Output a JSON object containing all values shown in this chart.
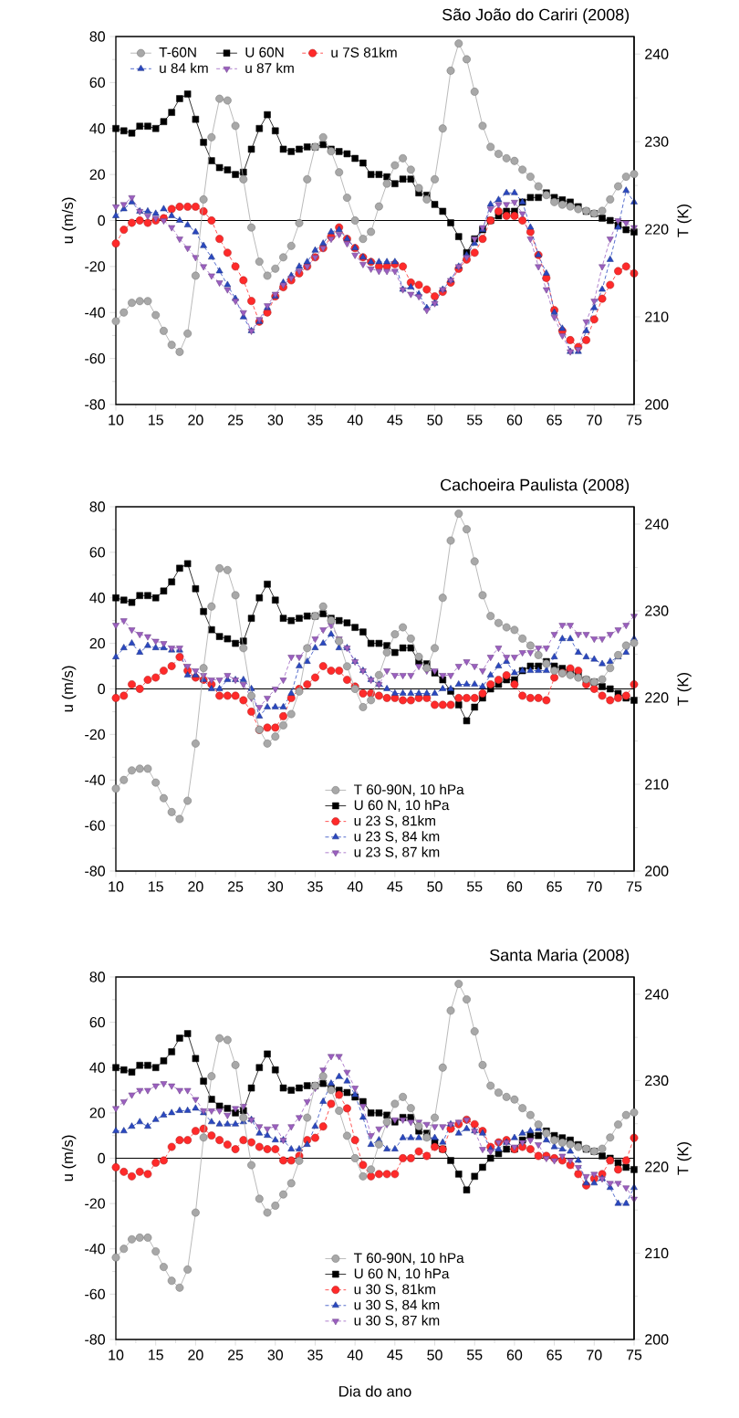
{
  "chart_data": [
    {
      "type": "line",
      "title": "São João do Cariri (2008)",
      "ylabel": "u (m/s)",
      "y2label": "T (K)",
      "x": [
        10,
        11,
        12,
        13,
        14,
        15,
        16,
        17,
        18,
        19,
        20,
        21,
        22,
        23,
        24,
        25,
        26,
        27,
        28,
        29,
        30,
        31,
        32,
        33,
        34,
        35,
        36,
        37,
        38,
        39,
        40,
        41,
        42,
        43,
        44,
        45,
        46,
        47,
        48,
        49,
        50,
        51,
        52,
        53,
        54,
        55,
        56,
        57,
        58,
        59,
        60,
        61,
        62,
        63,
        64,
        65,
        66,
        67,
        68,
        69,
        70,
        71,
        72,
        73,
        74,
        75
      ],
      "xlim": [
        10,
        75
      ],
      "xticks": [
        10,
        15,
        20,
        25,
        30,
        35,
        40,
        45,
        50,
        55,
        60,
        65,
        70,
        75
      ],
      "ylim": [
        -80,
        80
      ],
      "yticks": [
        -80,
        -60,
        -40,
        -20,
        0,
        20,
        40,
        60,
        80
      ],
      "y2lim": [
        200,
        242
      ],
      "y2ticks": [
        200,
        210,
        220,
        230,
        240
      ],
      "legend": "top",
      "ref_lines": [
        {
          "axis": "y",
          "value": 0,
          "color": "#000000"
        }
      ],
      "series": [
        {
          "name": "T-60N",
          "axis": "y2",
          "color": "#a8a8a8",
          "marker": "circle",
          "line_style": "solid",
          "values": [
            209.5,
            210.5,
            211.6,
            211.8,
            211.8,
            210.2,
            208.4,
            206.8,
            206.0,
            208.1,
            214.7,
            223.4,
            230.5,
            234.9,
            234.7,
            231.8,
            225.7,
            220.2,
            216.3,
            214.7,
            215.5,
            216.8,
            218.1,
            220.7,
            225.7,
            229.4,
            230.5,
            228.9,
            226.5,
            223.6,
            221.0,
            218.9,
            219.7,
            222.6,
            225.2,
            227.3,
            228.1,
            226.8,
            224.7,
            223.4,
            225.7,
            231.5,
            238.1,
            241.2,
            239.4,
            235.7,
            231.8,
            229.4,
            228.6,
            228.1,
            227.8,
            226.8,
            226.0,
            224.9,
            223.9,
            223.1,
            222.8,
            222.6,
            222.3,
            222.1,
            221.8,
            222.1,
            223.4,
            224.9,
            226.0,
            226.3
          ]
        },
        {
          "name": "U 60N",
          "color": "#000000",
          "marker": "square",
          "line_style": "solid",
          "values": [
            40,
            39,
            38,
            41,
            41,
            40,
            43,
            47,
            53,
            55,
            44,
            34,
            26,
            23,
            22,
            20,
            21,
            31,
            40,
            46,
            39,
            31,
            30,
            31,
            32,
            32,
            33,
            31,
            30,
            29,
            27,
            25,
            20,
            20,
            19,
            16,
            18,
            18,
            12,
            11,
            7,
            4,
            -1,
            -7,
            -14,
            -8,
            -4,
            0,
            2,
            4,
            4,
            8,
            10,
            10,
            12,
            10,
            9,
            8,
            6,
            4,
            3,
            1,
            0,
            -2,
            -4,
            -5
          ]
        },
        {
          "name": "u 7S 81km",
          "color": "#ff2a2a",
          "marker": "circle",
          "line_style": "dashed",
          "values": [
            -10,
            -4,
            -1,
            0,
            -1,
            0,
            1,
            5,
            6,
            6,
            6,
            4,
            0,
            -8,
            -14,
            -20,
            -26,
            -35,
            -44,
            -40,
            -33,
            -29,
            -26,
            -23,
            -20,
            -16,
            -12,
            -7,
            -3,
            -8,
            -12,
            -16,
            -18,
            -20,
            -20,
            -19,
            -20,
            -27,
            -28,
            -30,
            -33,
            -31,
            -27,
            -21,
            -17,
            -14,
            -8,
            0,
            4,
            2,
            2,
            0,
            -5,
            -15,
            -25,
            -39,
            -48,
            -52,
            -55,
            -52,
            -43,
            -34,
            -28,
            -22,
            -20,
            -23
          ]
        },
        {
          "name": "u 84 km",
          "color": "#2a48c0",
          "marker": "triangle",
          "line_style": "dashed",
          "values": [
            2,
            5,
            8,
            4,
            4,
            3,
            5,
            2,
            0,
            -2,
            -5,
            -11,
            -16,
            -22,
            -28,
            -34,
            -42,
            -48,
            -44,
            -38,
            -33,
            -27,
            -24,
            -20,
            -18,
            -13,
            -10,
            -5,
            -4,
            -8,
            -12,
            -16,
            -18,
            -18,
            -18,
            -18,
            -30,
            -29,
            -32,
            -38,
            -36,
            -30,
            -26,
            -20,
            -15,
            -10,
            -4,
            7,
            9,
            12,
            12,
            8,
            -3,
            -15,
            -23,
            -40,
            -47,
            -57,
            -57,
            -48,
            -38,
            -30,
            -17,
            -3,
            13,
            8
          ]
        },
        {
          "name": "u 87 km",
          "color": "#9b5fc0",
          "marker": "triangle_down",
          "line_style": "dashed",
          "values": [
            6,
            7,
            10,
            4,
            2,
            1,
            0,
            -3,
            -8,
            -12,
            -16,
            -20,
            -24,
            -27,
            -30,
            -35,
            -40,
            -48,
            -43,
            -37,
            -32,
            -28,
            -25,
            -22,
            -20,
            -16,
            -12,
            -8,
            -6,
            -10,
            -15,
            -19,
            -21,
            -22,
            -22,
            -22,
            -30,
            -32,
            -33,
            -39,
            -36,
            -30,
            -26,
            -20,
            -16,
            -8,
            -3,
            5,
            7,
            7,
            8,
            3,
            -8,
            -20,
            -30,
            -42,
            -50,
            -57,
            -56,
            -44,
            -35,
            -20,
            -8,
            0,
            -1,
            -3
          ]
        }
      ]
    },
    {
      "type": "line",
      "title": "Cachoeira Paulista (2008)",
      "ylabel": "u (m/s)",
      "y2label": "T (K)",
      "x": [
        10,
        11,
        12,
        13,
        14,
        15,
        16,
        17,
        18,
        19,
        20,
        21,
        22,
        23,
        24,
        25,
        26,
        27,
        28,
        29,
        30,
        31,
        32,
        33,
        34,
        35,
        36,
        37,
        38,
        39,
        40,
        41,
        42,
        43,
        44,
        45,
        46,
        47,
        48,
        49,
        50,
        51,
        52,
        53,
        54,
        55,
        56,
        57,
        58,
        59,
        60,
        61,
        62,
        63,
        64,
        65,
        66,
        67,
        68,
        69,
        70,
        71,
        72,
        73,
        74,
        75
      ],
      "xlim": [
        10,
        75
      ],
      "xticks": [
        10,
        15,
        20,
        25,
        30,
        35,
        40,
        45,
        50,
        55,
        60,
        65,
        70,
        75
      ],
      "ylim": [
        -80,
        80
      ],
      "yticks": [
        -80,
        -60,
        -40,
        -20,
        0,
        20,
        40,
        60,
        80
      ],
      "y2lim": [
        200,
        242
      ],
      "y2ticks": [
        200,
        210,
        220,
        230,
        240
      ],
      "legend": "bottom",
      "ref_lines": [
        {
          "axis": "y",
          "value": 0,
          "color": "#000000"
        }
      ],
      "series": [
        {
          "name": "T 60-90N, 10 hPa",
          "axis": "y2",
          "color": "#a8a8a8",
          "marker": "circle",
          "line_style": "solid",
          "values": [
            209.5,
            210.5,
            211.6,
            211.8,
            211.8,
            210.2,
            208.4,
            206.8,
            206.0,
            208.1,
            214.7,
            223.4,
            230.5,
            234.9,
            234.7,
            231.8,
            225.7,
            220.2,
            216.3,
            214.7,
            215.5,
            216.8,
            218.1,
            220.7,
            225.7,
            229.4,
            230.5,
            228.9,
            226.5,
            223.6,
            221.0,
            218.9,
            219.7,
            222.6,
            225.2,
            227.3,
            228.1,
            226.8,
            224.7,
            223.4,
            225.7,
            231.5,
            238.1,
            241.2,
            239.4,
            235.7,
            231.8,
            229.4,
            228.6,
            228.1,
            227.8,
            226.8,
            226.0,
            224.9,
            223.9,
            223.1,
            222.8,
            222.6,
            222.3,
            222.1,
            221.8,
            222.1,
            223.4,
            224.9,
            226.0,
            226.3
          ]
        },
        {
          "name": "U 60 N, 10 hPa",
          "color": "#000000",
          "marker": "square",
          "line_style": "solid",
          "values": [
            40,
            39,
            38,
            41,
            41,
            40,
            43,
            47,
            53,
            55,
            44,
            34,
            26,
            23,
            22,
            20,
            21,
            31,
            40,
            46,
            39,
            31,
            30,
            31,
            32,
            32,
            33,
            31,
            30,
            29,
            27,
            25,
            20,
            20,
            19,
            16,
            18,
            18,
            12,
            11,
            7,
            4,
            -1,
            -7,
            -14,
            -8,
            -4,
            0,
            2,
            4,
            4,
            8,
            10,
            10,
            12,
            10,
            9,
            8,
            6,
            4,
            3,
            1,
            0,
            -2,
            -4,
            -5
          ]
        },
        {
          "name": "u 23 S, 81km",
          "color": "#ff2a2a",
          "marker": "circle",
          "line_style": "dashed",
          "values": [
            -4,
            -3,
            2,
            0,
            4,
            5,
            8,
            10,
            14,
            8,
            5,
            4,
            2,
            -3,
            -3,
            -3,
            -5,
            -10,
            -18,
            -17,
            -17,
            -12,
            -4,
            0,
            2,
            5,
            10,
            8,
            8,
            4,
            1,
            -2,
            -2,
            -3,
            -4,
            -4,
            -5,
            -5,
            -4,
            -4,
            -7,
            -7,
            -7,
            -4,
            -4,
            -4,
            -2,
            2,
            4,
            6,
            2,
            -3,
            -4,
            -4,
            -5,
            5,
            7,
            9,
            8,
            2,
            0,
            -3,
            -5,
            -4,
            -3,
            2
          ]
        },
        {
          "name": "u 23 S, 84 km",
          "color": "#2a48c0",
          "marker": "triangle",
          "line_style": "dashed",
          "values": [
            14,
            18,
            20,
            16,
            19,
            18,
            18,
            17,
            17,
            6,
            6,
            4,
            0,
            0,
            4,
            4,
            4,
            0,
            -12,
            -8,
            -8,
            -8,
            -2,
            10,
            12,
            18,
            20,
            24,
            18,
            18,
            12,
            8,
            4,
            2,
            0,
            -2,
            -2,
            -2,
            -2,
            -2,
            -2,
            0,
            0,
            2,
            2,
            2,
            1,
            6,
            10,
            12,
            7,
            8,
            8,
            8,
            8,
            14,
            22,
            22,
            16,
            14,
            13,
            11,
            12,
            14,
            16,
            22
          ]
        },
        {
          "name": "u 23 S, 87 km",
          "color": "#9b5fc0",
          "marker": "triangle_down",
          "line_style": "dashed",
          "values": [
            28,
            30,
            26,
            24,
            23,
            21,
            20,
            18,
            18,
            10,
            8,
            6,
            4,
            4,
            6,
            4,
            2,
            -4,
            -8,
            -4,
            0,
            4,
            14,
            14,
            18,
            22,
            26,
            28,
            22,
            18,
            12,
            8,
            4,
            2,
            8,
            6,
            6,
            6,
            10,
            8,
            8,
            6,
            6,
            10,
            12,
            10,
            8,
            14,
            18,
            14,
            14,
            16,
            16,
            18,
            18,
            24,
            28,
            28,
            24,
            24,
            22,
            22,
            24,
            26,
            28,
            32
          ]
        }
      ]
    },
    {
      "type": "line",
      "title": "Santa Maria (2008)",
      "xlabel": "Dia do ano",
      "ylabel": "u (m/s)",
      "y2label": "T (K)",
      "x": [
        10,
        11,
        12,
        13,
        14,
        15,
        16,
        17,
        18,
        19,
        20,
        21,
        22,
        23,
        24,
        25,
        26,
        27,
        28,
        29,
        30,
        31,
        32,
        33,
        34,
        35,
        36,
        37,
        38,
        39,
        40,
        41,
        42,
        43,
        44,
        45,
        46,
        47,
        48,
        49,
        50,
        51,
        52,
        53,
        54,
        55,
        56,
        57,
        58,
        59,
        60,
        61,
        62,
        63,
        64,
        65,
        66,
        67,
        68,
        69,
        70,
        71,
        72,
        73,
        74,
        75
      ],
      "xlim": [
        10,
        75
      ],
      "xticks": [
        10,
        15,
        20,
        25,
        30,
        35,
        40,
        45,
        50,
        55,
        60,
        65,
        70,
        75
      ],
      "ylim": [
        -80,
        80
      ],
      "yticks": [
        -80,
        -60,
        -40,
        -20,
        0,
        20,
        40,
        60,
        80
      ],
      "y2lim": [
        200,
        242
      ],
      "y2ticks": [
        200,
        210,
        220,
        230,
        240
      ],
      "legend": "bottom",
      "ref_lines": [
        {
          "axis": "y",
          "value": 0,
          "color": "#000000"
        }
      ],
      "series": [
        {
          "name": "T 60-90N, 10 hPa",
          "axis": "y2",
          "color": "#a8a8a8",
          "marker": "circle",
          "line_style": "solid",
          "values": [
            209.5,
            210.5,
            211.6,
            211.8,
            211.8,
            210.2,
            208.4,
            206.8,
            206.0,
            208.1,
            214.7,
            223.4,
            230.5,
            234.9,
            234.7,
            231.8,
            225.7,
            220.2,
            216.3,
            214.7,
            215.5,
            216.8,
            218.1,
            220.7,
            225.7,
            229.4,
            230.5,
            228.9,
            226.5,
            223.6,
            221.0,
            218.9,
            219.7,
            222.6,
            225.2,
            227.3,
            228.1,
            226.8,
            224.7,
            223.4,
            225.7,
            231.5,
            238.1,
            241.2,
            239.4,
            235.7,
            231.8,
            229.4,
            228.6,
            228.1,
            227.8,
            226.8,
            226.0,
            224.9,
            223.9,
            223.1,
            222.8,
            222.6,
            222.3,
            222.1,
            221.8,
            222.1,
            223.4,
            224.9,
            226.0,
            226.3
          ]
        },
        {
          "name": "U 60 N, 10 hPa",
          "color": "#000000",
          "marker": "square",
          "line_style": "solid",
          "values": [
            40,
            39,
            38,
            41,
            41,
            40,
            43,
            47,
            53,
            55,
            44,
            34,
            26,
            23,
            22,
            20,
            21,
            31,
            40,
            46,
            39,
            31,
            30,
            31,
            32,
            32,
            33,
            31,
            30,
            29,
            27,
            25,
            20,
            20,
            19,
            16,
            18,
            18,
            12,
            11,
            7,
            4,
            -1,
            -7,
            -14,
            -8,
            -4,
            0,
            2,
            4,
            4,
            8,
            10,
            10,
            12,
            10,
            9,
            8,
            6,
            4,
            3,
            1,
            0,
            -2,
            -4,
            -5
          ]
        },
        {
          "name": "u 30 S, 81km",
          "color": "#ff2a2a",
          "marker": "circle",
          "line_style": "dashed",
          "values": [
            -4,
            -6,
            -8,
            -6,
            -7,
            -2,
            -1,
            5,
            8,
            8,
            12,
            13,
            10,
            8,
            6,
            4,
            8,
            7,
            5,
            4,
            4,
            -1,
            -1,
            1,
            8,
            9,
            14,
            24,
            28,
            22,
            8,
            -3,
            -8,
            -7,
            -7,
            -7,
            0,
            0,
            3,
            1,
            5,
            4,
            13,
            15,
            17,
            15,
            12,
            5,
            7,
            8,
            4,
            5,
            4,
            1,
            1,
            0,
            -1,
            -3,
            -7,
            -12,
            -9,
            -7,
            -1,
            -5,
            -1,
            9
          ]
        },
        {
          "name": "u 30 S, 84 km",
          "color": "#2a48c0",
          "marker": "triangle",
          "line_style": "dashed",
          "values": [
            12,
            12,
            14,
            16,
            14,
            17,
            19,
            20,
            21,
            21,
            22,
            20,
            16,
            15,
            15,
            15,
            16,
            17,
            11,
            10,
            8,
            8,
            4,
            4,
            6,
            14,
            25,
            33,
            36,
            34,
            28,
            18,
            6,
            8,
            4,
            4,
            9,
            9,
            9,
            9,
            9,
            7,
            15,
            11,
            13,
            12,
            11,
            4,
            4,
            7,
            9,
            11,
            12,
            13,
            8,
            5,
            4,
            3,
            -1,
            -11,
            -11,
            -9,
            -13,
            -20,
            -20,
            -13
          ]
        },
        {
          "name": "u 30 S, 87 km",
          "color": "#9b5fc0",
          "marker": "triangle_down",
          "line_style": "dashed",
          "values": [
            22,
            25,
            28,
            30,
            30,
            32,
            33,
            32,
            30,
            30,
            26,
            21,
            21,
            21,
            19,
            22,
            23,
            17,
            14,
            13,
            14,
            8,
            14,
            18,
            25,
            31,
            39,
            45,
            45,
            38,
            31,
            23,
            10,
            13,
            15,
            17,
            17,
            16,
            16,
            15,
            14,
            14,
            15,
            16,
            17,
            12,
            4,
            3,
            7,
            7,
            5,
            7,
            8,
            6,
            0,
            -1,
            1,
            -1,
            -4,
            -8,
            -7,
            -9,
            -11,
            -11,
            -13,
            -18
          ]
        }
      ]
    }
  ]
}
